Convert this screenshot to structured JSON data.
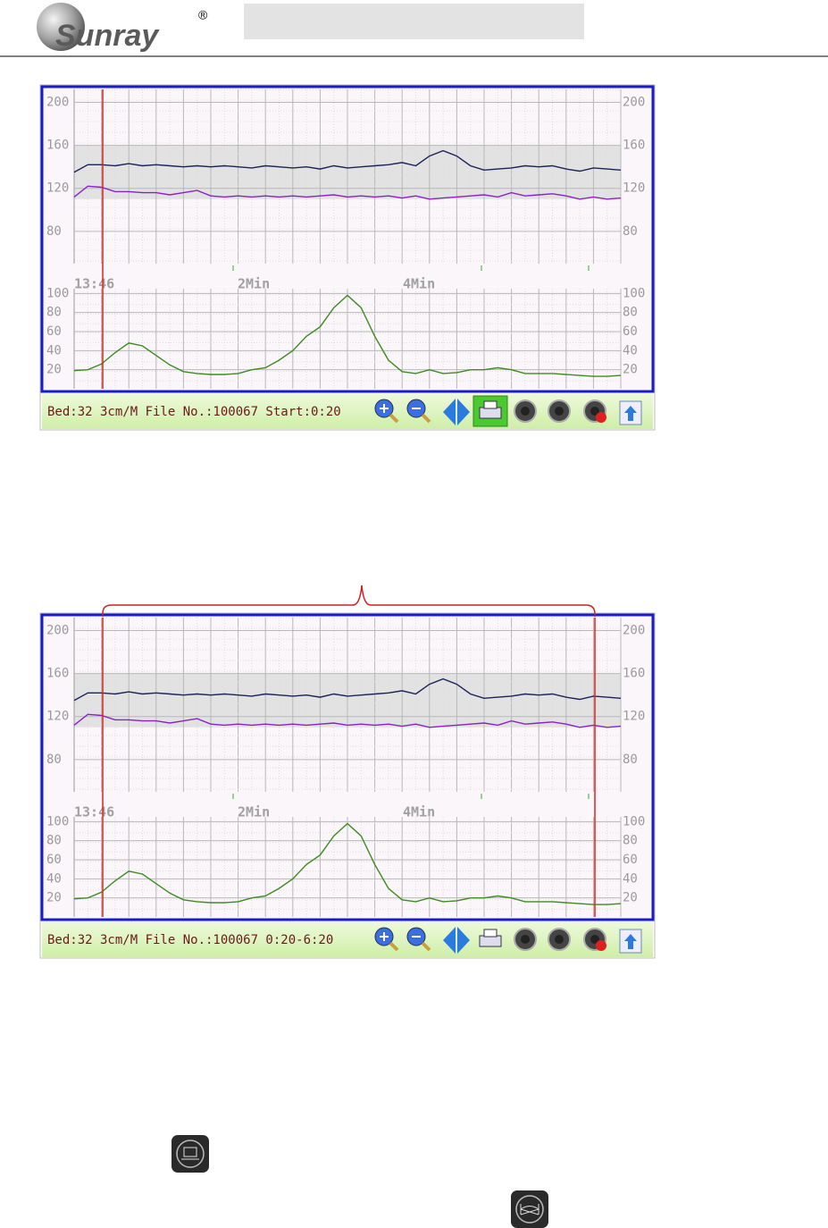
{
  "header": {
    "logo": "Sunray",
    "registered": "®"
  },
  "traces": {
    "fhr1": {
      "color": "#1c2356",
      "values": [
        135,
        142,
        142,
        141,
        143,
        141,
        142,
        141,
        140,
        141,
        140,
        141,
        140,
        139,
        141,
        140,
        139,
        140,
        138,
        141,
        139,
        140,
        141,
        142,
        144,
        141,
        150,
        155,
        150,
        141,
        137,
        138,
        139,
        141,
        140,
        141,
        138,
        136,
        139,
        138,
        137
      ]
    },
    "fhr2": {
      "color": "#8a22c8",
      "values": [
        112,
        122,
        121,
        117,
        117,
        116,
        116,
        114,
        116,
        118,
        113,
        112,
        113,
        112,
        113,
        112,
        113,
        112,
        113,
        114,
        112,
        113,
        112,
        113,
        111,
        113,
        110,
        111,
        112,
        113,
        114,
        112,
        116,
        113,
        114,
        115,
        113,
        110,
        112,
        110,
        111
      ]
    },
    "toco": {
      "color": "#3f8a22",
      "values": [
        19,
        20,
        26,
        38,
        48,
        45,
        35,
        25,
        18,
        16,
        15,
        15,
        16,
        20,
        22,
        30,
        40,
        55,
        65,
        85,
        98,
        85,
        55,
        30,
        18,
        16,
        20,
        16,
        17,
        20,
        20,
        22,
        20,
        16,
        16,
        16,
        15,
        14,
        13,
        13,
        14
      ]
    }
  },
  "fhr_axis": {
    "ylim": [
      50,
      212
    ],
    "yticks": [
      80,
      120,
      160,
      200
    ],
    "band": [
      110,
      160
    ]
  },
  "toco_axis": {
    "ylim": [
      0,
      105
    ],
    "yticks": [
      20,
      40,
      60,
      80,
      100
    ]
  },
  "time_labels": [
    "13:46",
    "2Min",
    "4Min"
  ],
  "panels": [
    {
      "status": "Bed:32 3cm/M File No.:100067 Start:0:20"
    },
    {
      "status": "Bed:32 3cm/M File No.:100067 0:20-6:20"
    }
  ]
}
